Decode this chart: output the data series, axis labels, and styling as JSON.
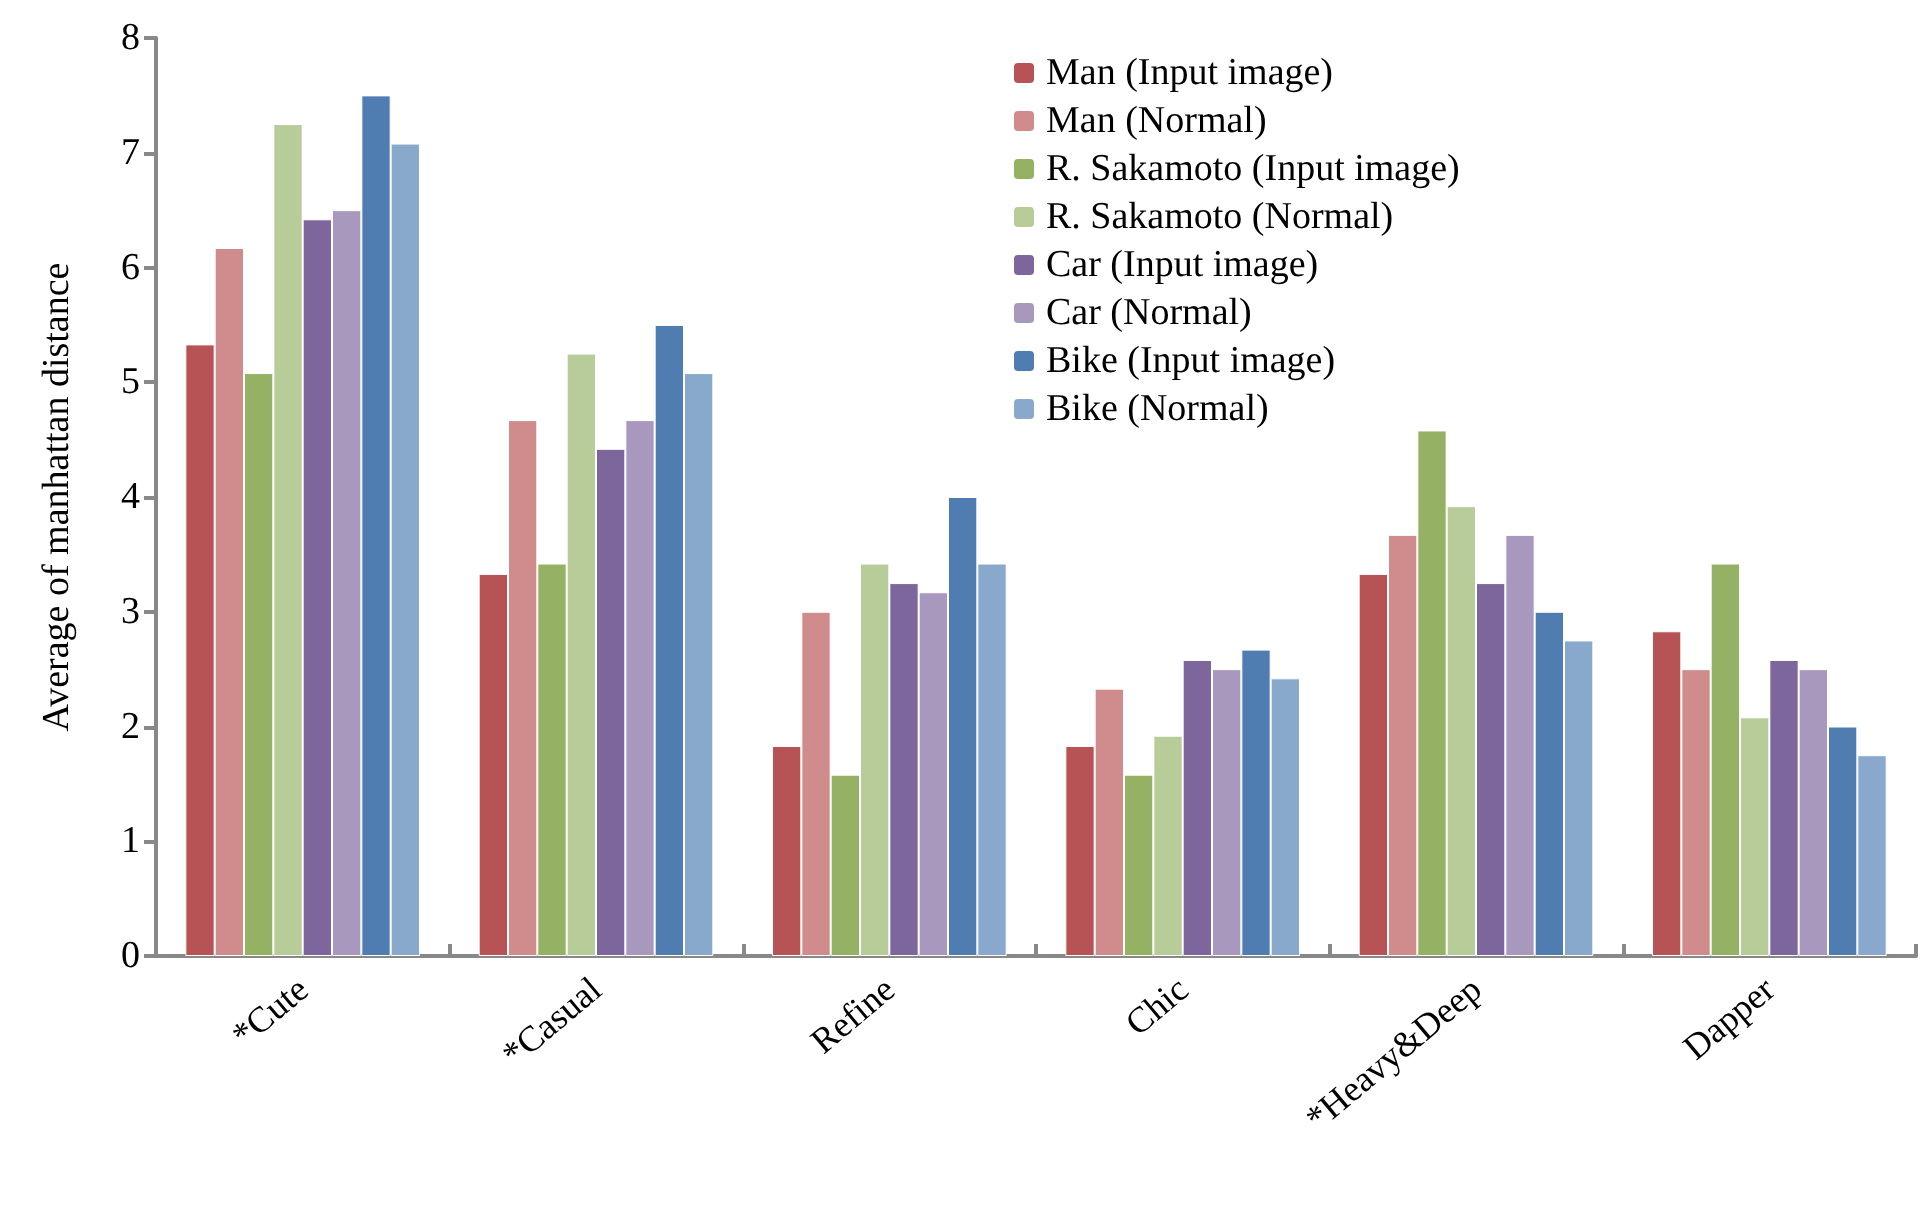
{
  "chart_data": {
    "type": "bar",
    "ylabel": "Average of manhattan distance",
    "categories": [
      "*Cute",
      "*Casual",
      "Refine",
      "Chic",
      "*Heavy&Deep",
      "Dapper"
    ],
    "series": [
      {
        "name": "Man (Input image)",
        "color": "#b85355",
        "values": [
          5.33,
          3.33,
          1.83,
          1.83,
          3.33,
          2.83
        ]
      },
      {
        "name": "Man (Normal)",
        "color": "#d08c8c",
        "values": [
          6.17,
          4.67,
          3.0,
          2.33,
          3.67,
          2.5
        ]
      },
      {
        "name": "R. Sakamoto (Input image)",
        "color": "#94b164",
        "values": [
          5.08,
          3.42,
          1.58,
          1.58,
          4.58,
          3.42
        ]
      },
      {
        "name": "R. Sakamoto (Normal)",
        "color": "#b8cc9a",
        "values": [
          7.25,
          5.25,
          3.42,
          1.92,
          3.92,
          2.08
        ]
      },
      {
        "name": "Car (Input image)",
        "color": "#7c669c",
        "values": [
          6.42,
          4.42,
          3.25,
          2.58,
          3.25,
          2.58
        ]
      },
      {
        "name": "Car (Normal)",
        "color": "#a898bd",
        "values": [
          6.5,
          4.67,
          3.17,
          2.5,
          3.67,
          2.5
        ]
      },
      {
        "name": "Bike (Input image)",
        "color": "#4f7db2",
        "values": [
          7.5,
          5.5,
          4.0,
          2.67,
          3.0,
          2.0
        ]
      },
      {
        "name": "Bike (Normal)",
        "color": "#88a8cc",
        "values": [
          7.08,
          5.08,
          3.42,
          2.42,
          2.75,
          1.75
        ]
      }
    ],
    "ylim": [
      0,
      8
    ],
    "yticks": [
      0,
      1,
      2,
      3,
      4,
      5,
      6,
      7,
      8
    ],
    "grid": false,
    "legend": "top right"
  }
}
